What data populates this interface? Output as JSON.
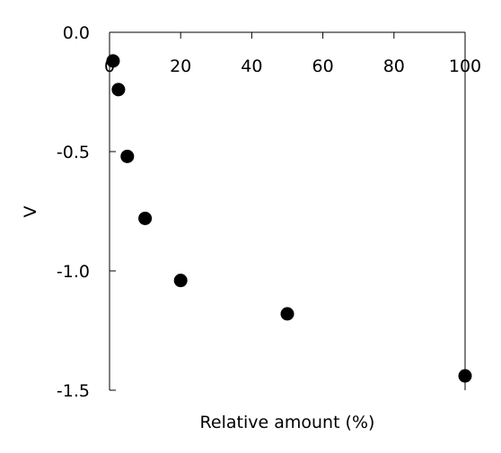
{
  "chart_data": {
    "type": "scatter",
    "title": "",
    "xlabel": "Relative amount (%)",
    "ylabel": "V",
    "xlim": [
      0,
      100
    ],
    "ylim": [
      -1.5,
      0.0
    ],
    "xticks": [
      0,
      20,
      40,
      60,
      80,
      100
    ],
    "xtick_labels": [
      "0",
      "20",
      "40",
      "60",
      "80",
      "100"
    ],
    "yticks": [
      0.0,
      -0.5,
      -1.0,
      -1.5
    ],
    "ytick_labels": [
      "0.0",
      "-0.5",
      "-1.0",
      "-1.5"
    ],
    "grid": false,
    "x_axis_position": "top",
    "marker_color": "#000000",
    "series": [
      {
        "x": [
          1,
          2.5,
          5,
          10,
          20,
          50,
          100
        ],
        "y": [
          -0.12,
          -0.24,
          -0.52,
          -0.78,
          -1.04,
          -1.18,
          -1.44
        ]
      }
    ]
  }
}
